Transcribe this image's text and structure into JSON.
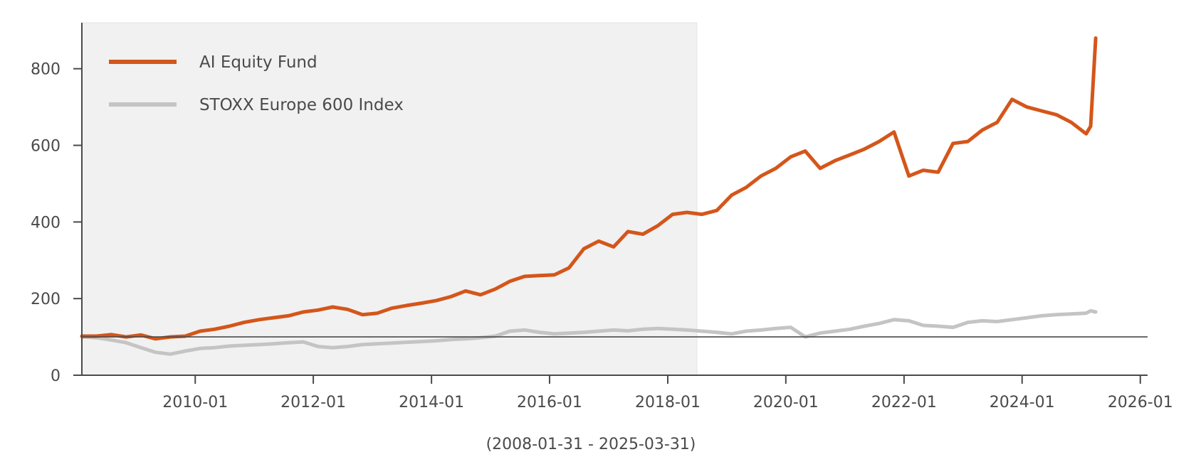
{
  "chart_data": {
    "type": "line",
    "title": "",
    "xlabel": "(2008-01-31 - 2025-03-31)",
    "ylabel": "",
    "xlim": [
      "2008-01-31",
      "2026-02-15"
    ],
    "ylim": [
      0,
      920
    ],
    "x_ticks": [
      "2010-01",
      "2012-01",
      "2014-01",
      "2016-01",
      "2018-01",
      "2020-01",
      "2022-01",
      "2024-01",
      "2026-01"
    ],
    "y_ticks": [
      "0",
      "200",
      "400",
      "600",
      "800"
    ],
    "baseline": 100,
    "shaded_region": [
      "2008-01-31",
      "2018-06-30"
    ],
    "legend_placement": "top-left",
    "grid": false,
    "series": [
      {
        "name": "AI Equity Fund",
        "color": "#d4561a",
        "points": [
          [
            "2008-01-31",
            102
          ],
          [
            "2008-04-30",
            102
          ],
          [
            "2008-07-31",
            106
          ],
          [
            "2008-10-31",
            100
          ],
          [
            "2009-01-31",
            105
          ],
          [
            "2009-04-30",
            95
          ],
          [
            "2009-07-31",
            100
          ],
          [
            "2009-10-31",
            102
          ],
          [
            "2010-01-31",
            115
          ],
          [
            "2010-04-30",
            120
          ],
          [
            "2010-07-31",
            128
          ],
          [
            "2010-10-31",
            138
          ],
          [
            "2011-01-31",
            145
          ],
          [
            "2011-04-30",
            150
          ],
          [
            "2011-07-31",
            155
          ],
          [
            "2011-10-31",
            165
          ],
          [
            "2012-01-31",
            170
          ],
          [
            "2012-04-30",
            178
          ],
          [
            "2012-07-31",
            172
          ],
          [
            "2012-10-31",
            158
          ],
          [
            "2013-01-31",
            162
          ],
          [
            "2013-04-30",
            175
          ],
          [
            "2013-07-31",
            182
          ],
          [
            "2013-10-31",
            188
          ],
          [
            "2014-01-31",
            195
          ],
          [
            "2014-04-30",
            205
          ],
          [
            "2014-07-31",
            220
          ],
          [
            "2014-10-31",
            210
          ],
          [
            "2015-01-31",
            225
          ],
          [
            "2015-04-30",
            245
          ],
          [
            "2015-07-31",
            258
          ],
          [
            "2015-10-31",
            260
          ],
          [
            "2016-01-31",
            262
          ],
          [
            "2016-04-30",
            280
          ],
          [
            "2016-07-31",
            330
          ],
          [
            "2016-10-31",
            350
          ],
          [
            "2017-01-31",
            335
          ],
          [
            "2017-04-30",
            375
          ],
          [
            "2017-07-31",
            368
          ],
          [
            "2017-10-31",
            390
          ],
          [
            "2018-01-31",
            420
          ],
          [
            "2018-04-30",
            425
          ],
          [
            "2018-07-31",
            420
          ],
          [
            "2018-10-31",
            430
          ],
          [
            "2019-01-31",
            470
          ],
          [
            "2019-04-30",
            490
          ],
          [
            "2019-07-31",
            520
          ],
          [
            "2019-10-31",
            540
          ],
          [
            "2020-01-31",
            570
          ],
          [
            "2020-04-30",
            585
          ],
          [
            "2020-07-31",
            540
          ],
          [
            "2020-10-31",
            560
          ],
          [
            "2021-01-31",
            575
          ],
          [
            "2021-04-30",
            590
          ],
          [
            "2021-07-31",
            610
          ],
          [
            "2021-10-31",
            635
          ],
          [
            "2022-01-31",
            520
          ],
          [
            "2022-04-30",
            535
          ],
          [
            "2022-07-31",
            530
          ],
          [
            "2022-10-31",
            605
          ],
          [
            "2023-01-31",
            610
          ],
          [
            "2023-04-30",
            640
          ],
          [
            "2023-07-31",
            660
          ],
          [
            "2023-10-31",
            720
          ],
          [
            "2024-01-31",
            700
          ],
          [
            "2024-04-30",
            690
          ],
          [
            "2024-07-31",
            680
          ],
          [
            "2024-10-31",
            660
          ],
          [
            "2025-01-31",
            630
          ],
          [
            "2025-02-28",
            650
          ],
          [
            "2025-03-31",
            880
          ]
        ]
      },
      {
        "name": "STOXX Europe 600 Index",
        "color": "#c4c4c4",
        "points": [
          [
            "2008-01-31",
            100
          ],
          [
            "2008-04-30",
            98
          ],
          [
            "2008-07-31",
            92
          ],
          [
            "2008-10-31",
            85
          ],
          [
            "2009-01-31",
            72
          ],
          [
            "2009-04-30",
            60
          ],
          [
            "2009-07-31",
            55
          ],
          [
            "2009-10-31",
            63
          ],
          [
            "2010-01-31",
            70
          ],
          [
            "2010-04-30",
            72
          ],
          [
            "2010-07-31",
            76
          ],
          [
            "2010-10-31",
            78
          ],
          [
            "2011-01-31",
            80
          ],
          [
            "2011-04-30",
            82
          ],
          [
            "2011-07-31",
            85
          ],
          [
            "2011-10-31",
            87
          ],
          [
            "2012-01-31",
            75
          ],
          [
            "2012-04-30",
            72
          ],
          [
            "2012-07-31",
            75
          ],
          [
            "2012-10-31",
            80
          ],
          [
            "2013-01-31",
            82
          ],
          [
            "2013-04-30",
            84
          ],
          [
            "2013-07-31",
            86
          ],
          [
            "2013-10-31",
            88
          ],
          [
            "2014-01-31",
            90
          ],
          [
            "2014-04-30",
            93
          ],
          [
            "2014-07-31",
            95
          ],
          [
            "2014-10-31",
            98
          ],
          [
            "2015-01-31",
            102
          ],
          [
            "2015-04-30",
            115
          ],
          [
            "2015-07-31",
            118
          ],
          [
            "2015-10-31",
            112
          ],
          [
            "2016-01-31",
            108
          ],
          [
            "2016-04-30",
            110
          ],
          [
            "2016-07-31",
            112
          ],
          [
            "2016-10-31",
            115
          ],
          [
            "2017-01-31",
            118
          ],
          [
            "2017-04-30",
            116
          ],
          [
            "2017-07-31",
            120
          ],
          [
            "2017-10-31",
            122
          ],
          [
            "2018-01-31",
            120
          ],
          [
            "2018-04-30",
            118
          ],
          [
            "2018-07-31",
            115
          ],
          [
            "2018-10-31",
            112
          ],
          [
            "2019-01-31",
            108
          ],
          [
            "2019-04-30",
            115
          ],
          [
            "2019-07-31",
            118
          ],
          [
            "2019-10-31",
            122
          ],
          [
            "2020-01-31",
            125
          ],
          [
            "2020-04-30",
            100
          ],
          [
            "2020-07-31",
            110
          ],
          [
            "2020-10-31",
            115
          ],
          [
            "2021-01-31",
            120
          ],
          [
            "2021-04-30",
            128
          ],
          [
            "2021-07-31",
            135
          ],
          [
            "2021-10-31",
            145
          ],
          [
            "2022-01-31",
            142
          ],
          [
            "2022-04-30",
            130
          ],
          [
            "2022-07-31",
            128
          ],
          [
            "2022-10-31",
            125
          ],
          [
            "2023-01-31",
            138
          ],
          [
            "2023-04-30",
            142
          ],
          [
            "2023-07-31",
            140
          ],
          [
            "2023-10-31",
            145
          ],
          [
            "2024-01-31",
            150
          ],
          [
            "2024-04-30",
            155
          ],
          [
            "2024-07-31",
            158
          ],
          [
            "2024-10-31",
            160
          ],
          [
            "2025-01-31",
            162
          ],
          [
            "2025-02-28",
            168
          ],
          [
            "2025-03-31",
            165
          ]
        ]
      }
    ]
  }
}
